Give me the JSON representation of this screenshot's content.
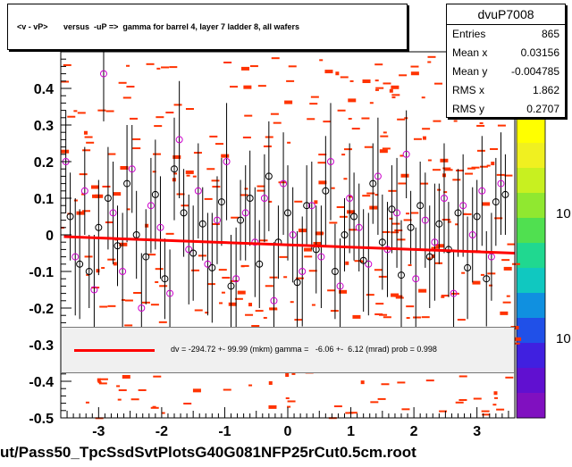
{
  "title": "<v - vP>       versus  -uP =>  gamma for barrel 4, layer 7 ladder 8, all wafers",
  "stats": {
    "name": "dvuP7008",
    "rows": [
      {
        "key": "Entries",
        "value": "865"
      },
      {
        "key": "Mean x",
        "value": "0.03156"
      },
      {
        "key": "Mean y",
        "value": "-0.004785"
      },
      {
        "key": "RMS x",
        "value": "1.862"
      },
      {
        "key": "RMS y",
        "value": "0.2707"
      }
    ]
  },
  "fit_legend": "dv = -294.72 +- 99.99 (mkm) gamma =   -6.06 +-  6.12 (mrad) prob = 0.998",
  "footer": "ut/Pass50_TpcSsdSvtPlotsG40G081NFP25rCut0.5cm.root",
  "palette_labels": [
    "10",
    "10"
  ],
  "colors": {
    "fit": "#ff0000",
    "cells": "#ff3300",
    "profile_black": "#000000",
    "profile_magenta": "#cc00cc",
    "legend_bg": "#f0f0f0"
  },
  "chart_data": {
    "type": "scatter",
    "xlim": [
      -3.6,
      3.6
    ],
    "ylim": [
      -0.5,
      0.5
    ],
    "xticks": [
      -3,
      -2,
      -1,
      0,
      1,
      2,
      3
    ],
    "yticks": [
      -0.5,
      -0.4,
      -0.3,
      -0.2,
      -0.1,
      0,
      0.1,
      0.2,
      0.3,
      0.4
    ],
    "ytick_labels": [
      "-0.5",
      "-0.4",
      "-0.3",
      "-0.2",
      "-0.1",
      "0",
      "0.1",
      "0.2",
      "0.3",
      "0.4"
    ],
    "fit_line": {
      "x": [
        -3.55,
        3.6
      ],
      "y": [
        -0.005,
        -0.05
      ]
    },
    "profile_black": {
      "x": [
        -3.45,
        -3.3,
        -3.15,
        -3.0,
        -2.85,
        -2.7,
        -2.55,
        -2.4,
        -2.25,
        -2.1,
        -1.95,
        -1.8,
        -1.65,
        -1.5,
        -1.35,
        -1.2,
        -1.05,
        -0.9,
        -0.75,
        -0.6,
        -0.45,
        -0.3,
        -0.15,
        0.0,
        0.15,
        0.3,
        0.45,
        0.6,
        0.75,
        0.9,
        1.05,
        1.2,
        1.35,
        1.5,
        1.65,
        1.8,
        1.95,
        2.1,
        2.25,
        2.4,
        2.55,
        2.7,
        2.85,
        3.0,
        3.15,
        3.3,
        3.45
      ],
      "y": [
        0.05,
        -0.08,
        -0.1,
        0.02,
        0.1,
        -0.03,
        0.14,
        0.0,
        -0.06,
        0.11,
        -0.12,
        0.18,
        0.06,
        -0.05,
        0.03,
        -0.09,
        0.09,
        -0.14,
        0.04,
        0.1,
        -0.08,
        0.16,
        -0.02,
        0.06,
        -0.13,
        0.08,
        -0.04,
        0.12,
        -0.1,
        0.0,
        0.05,
        -0.07,
        0.14,
        -0.02,
        0.07,
        -0.11,
        0.02,
        0.08,
        -0.06,
        0.03,
        -0.04,
        0.06,
        -0.09,
        0.05,
        -0.12,
        0.09,
        0.11
      ],
      "err": [
        0.12,
        0.15,
        0.1,
        0.13,
        0.14,
        0.11,
        0.16,
        0.12,
        0.13,
        0.15,
        0.11,
        0.14,
        0.12,
        0.13,
        0.1,
        0.15,
        0.12,
        0.14,
        0.11,
        0.13,
        0.12,
        0.15,
        0.1,
        0.13,
        0.14,
        0.11,
        0.12,
        0.15,
        0.13,
        0.1,
        0.12,
        0.14,
        0.11,
        0.13,
        0.12,
        0.15,
        0.1,
        0.12,
        0.14,
        0.11,
        0.13,
        0.12,
        0.14,
        0.1,
        0.13,
        0.12,
        0.11
      ]
    },
    "profile_magenta": {
      "x": [
        -3.52,
        -3.37,
        -3.22,
        -3.07,
        -2.92,
        -2.77,
        -2.62,
        -2.47,
        -2.32,
        -2.17,
        -2.02,
        -1.87,
        -1.72,
        -1.57,
        -1.42,
        -1.27,
        -1.12,
        -0.97,
        -0.82,
        -0.67,
        -0.52,
        -0.37,
        -0.22,
        -0.07,
        0.08,
        0.23,
        0.38,
        0.53,
        0.68,
        0.83,
        0.98,
        1.13,
        1.28,
        1.43,
        1.58,
        1.73,
        1.88,
        2.03,
        2.18,
        2.33,
        2.48,
        2.63,
        2.78,
        2.93,
        3.08,
        3.23,
        3.38
      ],
      "y": [
        0.2,
        -0.06,
        0.12,
        -0.15,
        0.44,
        0.06,
        -0.1,
        0.18,
        -0.2,
        0.08,
        0.02,
        -0.16,
        0.26,
        -0.04,
        0.12,
        -0.08,
        0.04,
        0.2,
        -0.12,
        0.06,
        -0.02,
        0.1,
        -0.18,
        0.14,
        0.0,
        -0.1,
        0.08,
        -0.06,
        0.2,
        -0.14,
        0.1,
        0.02,
        -0.08,
        0.16,
        -0.04,
        0.06,
        0.22,
        -0.12,
        0.04,
        -0.02,
        0.1,
        -0.16,
        0.08,
        0.0,
        0.12,
        -0.06,
        0.14
      ],
      "err": [
        0.14,
        0.16,
        0.12,
        0.15,
        0.13,
        0.14,
        0.16,
        0.12,
        0.15,
        0.13,
        0.14,
        0.12,
        0.16,
        0.15,
        0.13,
        0.14,
        0.12,
        0.16,
        0.14,
        0.13,
        0.15,
        0.12,
        0.16,
        0.14,
        0.13,
        0.15,
        0.12,
        0.14,
        0.16,
        0.13,
        0.15,
        0.12,
        0.14,
        0.16,
        0.13,
        0.15,
        0.12,
        0.14,
        0.13,
        0.16,
        0.15,
        0.12,
        0.14,
        0.13,
        0.15,
        0.12,
        0.14
      ]
    }
  }
}
